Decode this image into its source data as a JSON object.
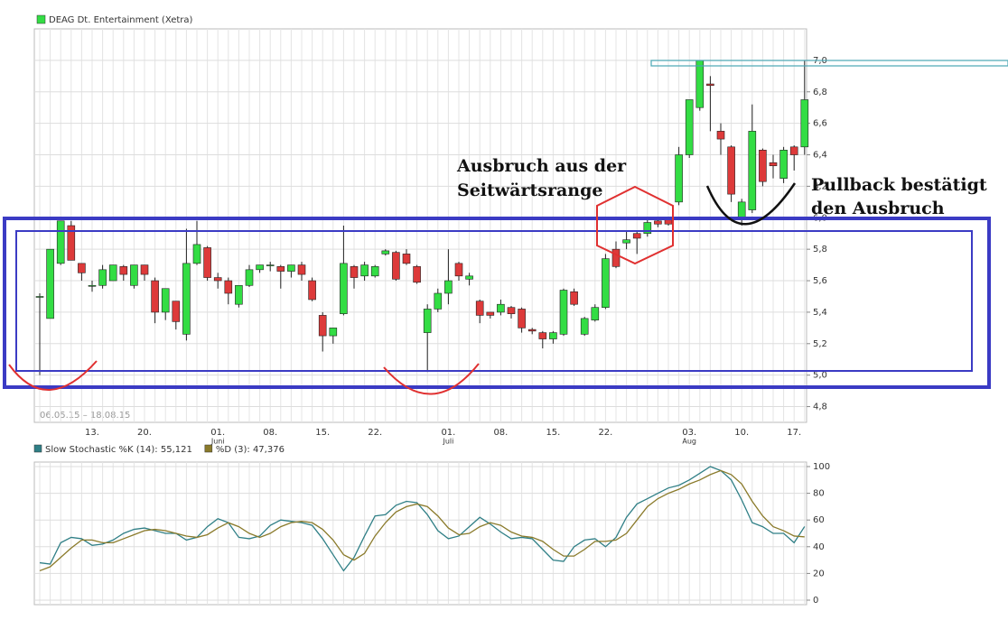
{
  "chart_data": [
    {
      "type": "candlestick",
      "title": "DEAG Dt. Entertainment (Xetra)",
      "subtitle": "06.05.15 – 18.08.15",
      "up_color": "#33dd44",
      "down_color": "#dd3a3a",
      "grid": true,
      "categories": [
        null,
        null,
        null,
        null,
        null,
        "13.",
        null,
        null,
        null,
        null,
        "20.",
        null,
        null,
        null,
        null,
        null,
        null,
        "01.",
        null,
        null,
        null,
        null,
        "08.",
        null,
        null,
        null,
        null,
        "15.",
        null,
        null,
        null,
        null,
        "22.",
        null,
        null,
        null,
        null,
        null,
        null,
        "01.",
        null,
        null,
        null,
        null,
        "08.",
        null,
        null,
        null,
        null,
        "15.",
        null,
        null,
        null,
        null,
        "22.",
        null,
        null,
        null,
        null,
        null,
        null,
        null,
        "03.",
        null,
        null,
        null,
        null,
        "10.",
        null,
        null,
        null,
        null,
        "17.",
        null
      ],
      "months": [
        null,
        null,
        null,
        null,
        null,
        null,
        null,
        null,
        null,
        null,
        null,
        null,
        null,
        null,
        null,
        null,
        null,
        "Juni",
        null,
        null,
        null,
        null,
        null,
        null,
        null,
        null,
        null,
        null,
        null,
        null,
        null,
        null,
        null,
        null,
        null,
        null,
        null,
        null,
        null,
        "Juli",
        null,
        null,
        null,
        null,
        null,
        null,
        null,
        null,
        null,
        null,
        null,
        null,
        null,
        null,
        null,
        null,
        null,
        null,
        null,
        null,
        null,
        null,
        "Aug",
        null,
        null,
        null,
        null,
        null,
        null,
        null,
        null,
        null,
        null,
        null
      ],
      "open": [
        5.5,
        5.36,
        5.71,
        5.95,
        5.71,
        5.57,
        5.57,
        5.6,
        5.69,
        5.57,
        5.7,
        5.6,
        5.4,
        5.47,
        5.26,
        5.71,
        5.81,
        5.62,
        5.6,
        5.45,
        5.57,
        5.67,
        5.7,
        5.69,
        5.66,
        5.7,
        5.6,
        5.38,
        5.25,
        5.39,
        5.69,
        5.63,
        5.63,
        5.77,
        5.78,
        5.77,
        5.69,
        5.27,
        5.42,
        5.52,
        5.71,
        5.61,
        5.47,
        5.4,
        5.4,
        5.43,
        5.42,
        5.29,
        5.27,
        5.23,
        5.26,
        5.53,
        5.26,
        5.35,
        5.43,
        5.8,
        5.84,
        5.9,
        5.9,
        5.98,
        5.99,
        6.1,
        6.4,
        6.7,
        6.85,
        6.55,
        6.45,
        6.0,
        6.05,
        6.43,
        6.35,
        6.25,
        6.45,
        6.45
      ],
      "high": [
        5.52,
        5.8,
        5.98,
        5.98,
        5.71,
        5.6,
        5.7,
        5.7,
        5.7,
        5.7,
        5.7,
        5.62,
        5.55,
        5.47,
        5.93,
        5.98,
        5.82,
        5.65,
        5.62,
        5.57,
        5.7,
        5.7,
        5.72,
        5.7,
        5.7,
        5.72,
        5.62,
        5.4,
        5.3,
        5.95,
        5.7,
        5.72,
        5.7,
        5.8,
        5.79,
        5.8,
        5.7,
        5.45,
        5.55,
        5.8,
        5.72,
        5.65,
        5.48,
        5.4,
        5.48,
        5.44,
        5.43,
        5.3,
        5.28,
        5.28,
        5.55,
        5.55,
        5.37,
        5.45,
        5.77,
        5.85,
        5.92,
        5.92,
        6.0,
        6.0,
        6.0,
        6.45,
        6.75,
        7.0,
        6.9,
        6.6,
        6.46,
        6.12,
        6.72,
        6.44,
        6.4,
        6.45,
        6.46,
        7.0
      ],
      "low": [
        5.0,
        5.36,
        5.7,
        5.73,
        5.6,
        5.53,
        5.55,
        5.6,
        5.6,
        5.55,
        5.6,
        5.33,
        5.35,
        5.29,
        5.22,
        5.7,
        5.6,
        5.55,
        5.45,
        5.43,
        5.56,
        5.65,
        5.66,
        5.55,
        5.62,
        5.6,
        5.47,
        5.15,
        5.2,
        5.38,
        5.55,
        5.6,
        5.62,
        5.76,
        5.6,
        5.7,
        5.58,
        5.02,
        5.4,
        5.45,
        5.6,
        5.57,
        5.33,
        5.36,
        5.38,
        5.36,
        5.27,
        5.26,
        5.17,
        5.2,
        5.25,
        5.44,
        5.25,
        5.34,
        5.42,
        5.68,
        5.8,
        5.77,
        5.88,
        5.94,
        5.95,
        6.08,
        6.38,
        6.68,
        6.55,
        6.4,
        6.1,
        5.95,
        6.03,
        6.2,
        6.25,
        6.22,
        6.3,
        6.4
      ],
      "close": [
        5.5,
        5.8,
        5.98,
        5.73,
        5.65,
        5.57,
        5.67,
        5.7,
        5.64,
        5.7,
        5.64,
        5.4,
        5.55,
        5.34,
        5.71,
        5.83,
        5.62,
        5.6,
        5.52,
        5.57,
        5.67,
        5.7,
        5.7,
        5.66,
        5.7,
        5.64,
        5.48,
        5.25,
        5.3,
        5.71,
        5.62,
        5.7,
        5.69,
        5.79,
        5.61,
        5.71,
        5.59,
        5.42,
        5.52,
        5.6,
        5.63,
        5.63,
        5.38,
        5.38,
        5.45,
        5.39,
        5.3,
        5.28,
        5.23,
        5.27,
        5.54,
        5.45,
        5.36,
        5.43,
        5.74,
        5.69,
        5.86,
        5.87,
        5.97,
        5.96,
        5.96,
        6.4,
        6.75,
        7.0,
        6.84,
        6.5,
        6.15,
        6.1,
        6.55,
        6.23,
        6.33,
        6.43,
        6.4,
        6.75
      ],
      "ylim": [
        4.7,
        7.2
      ],
      "yticks": [
        {
          "value": 4.8,
          "label": "4,8"
        },
        {
          "value": 5.0,
          "label": "5,0"
        },
        {
          "value": 5.2,
          "label": "5,2"
        },
        {
          "value": 5.4,
          "label": "5,4"
        },
        {
          "value": 5.6,
          "label": "5,6"
        },
        {
          "value": 5.8,
          "label": "5,8"
        },
        {
          "value": 6.0,
          "label": "6,0"
        },
        {
          "value": 6.2,
          "label": "6,2"
        },
        {
          "value": 6.4,
          "label": "6,4"
        },
        {
          "value": 6.6,
          "label": "6,6"
        },
        {
          "value": 6.8,
          "label": "6,8"
        },
        {
          "value": 7.0,
          "label": "7,0"
        }
      ]
    },
    {
      "type": "line",
      "grid": true,
      "ylim": [
        0,
        100
      ],
      "yticks": [
        0,
        20,
        40,
        60,
        80,
        100
      ],
      "series": [
        {
          "name": "Slow Stochastic %K (14): 55,121",
          "color": "#2f7f86",
          "values": [
            28,
            27,
            43,
            47,
            46,
            41,
            42,
            45,
            50,
            53,
            54,
            52,
            50,
            50,
            45,
            47,
            55,
            61,
            58,
            47,
            46,
            48,
            56,
            60,
            59,
            58,
            56,
            46,
            34,
            22,
            32,
            48,
            63,
            64,
            71,
            74,
            73,
            64,
            52,
            46,
            48,
            55,
            62,
            57,
            51,
            46,
            47,
            46,
            38,
            30,
            29,
            40,
            45,
            46,
            40,
            47,
            62,
            72,
            76,
            80,
            84,
            86,
            90,
            95,
            100,
            97,
            90,
            75,
            58,
            55,
            50,
            50,
            43,
            55.121
          ]
        },
        {
          "name": "%D (3): 47,376",
          "color": "#8a7a2a",
          "values": [
            22,
            25,
            32,
            39,
            45,
            45,
            43,
            43,
            46,
            49,
            52,
            53,
            52,
            50,
            48,
            47,
            49,
            54,
            58,
            55,
            50,
            47,
            50,
            55,
            58,
            59,
            58,
            53,
            45,
            34,
            30,
            35,
            48,
            58,
            66,
            70,
            72,
            70,
            63,
            54,
            49,
            50,
            55,
            58,
            56,
            51,
            48,
            47,
            44,
            38,
            33,
            33,
            38,
            44,
            44,
            45,
            50,
            60,
            70,
            76,
            80,
            83,
            87,
            90,
            94,
            97,
            94,
            87,
            74,
            63,
            55,
            52,
            48,
            47.376
          ]
        }
      ]
    }
  ],
  "annotations": {
    "breakout": [
      "Ausbruch aus der",
      "Seitwärtsrange"
    ],
    "pullback": [
      "Pullback bestätigt",
      "den Ausbruch"
    ]
  }
}
